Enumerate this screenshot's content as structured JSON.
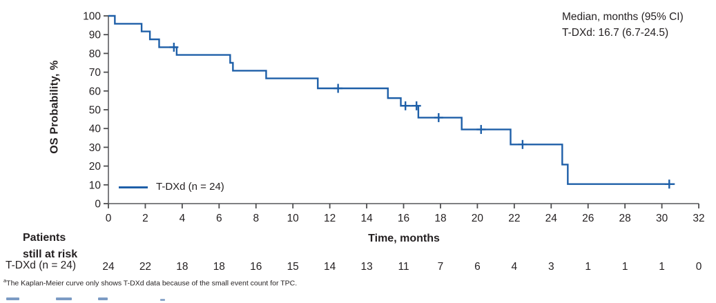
{
  "figure": {
    "annotation": {
      "line1": "Median, months (95% CI)",
      "line2": "T-DXd: 16.7 (6.7-24.5)"
    },
    "legend": {
      "label": "T-DXd (n = 24)"
    },
    "at_risk_header": {
      "line1": "Patients",
      "line2": "still at risk"
    },
    "footnote": {
      "marker": "a",
      "text": "The Kaplan-Meier curve only shows T-DXd data because of the small event count for TPC."
    }
  },
  "colors": {
    "curve": "#1e5fa8",
    "axis": "#6d6e71",
    "tick": "#4d4d4f",
    "text": "#231f20"
  },
  "chart_data": {
    "type": "line",
    "subtype": "kaplan-meier-step",
    "title": "",
    "xlabel": "Time, months",
    "ylabel": "OS Probability, %",
    "xlim": [
      0,
      32
    ],
    "ylim": [
      0,
      100
    ],
    "x_ticks": [
      0,
      2,
      4,
      6,
      8,
      10,
      12,
      14,
      16,
      18,
      20,
      22,
      24,
      26,
      28,
      30,
      32
    ],
    "y_ticks": [
      0,
      10,
      20,
      30,
      40,
      50,
      60,
      70,
      80,
      90,
      100
    ],
    "grid": false,
    "legend_position": "lower-left-inside",
    "median_months": 16.7,
    "ci_95": "6.7-24.5",
    "series": [
      {
        "name": "T-DXd (n = 24)",
        "color": "#1e5fa8",
        "steps": [
          [
            0,
            100
          ],
          [
            0.35,
            95.8
          ],
          [
            1.8,
            91.7
          ],
          [
            2.25,
            87.5
          ],
          [
            2.75,
            83.3
          ],
          [
            3.7,
            79.2
          ],
          [
            6.6,
            75.0
          ],
          [
            6.75,
            70.8
          ],
          [
            8.55,
            66.7
          ],
          [
            11.35,
            61.4
          ],
          [
            15.15,
            56.2
          ],
          [
            15.85,
            52.1
          ],
          [
            16.8,
            45.8
          ],
          [
            19.15,
            39.5
          ],
          [
            21.8,
            31.5
          ],
          [
            24.6,
            20.8
          ],
          [
            24.9,
            10.4
          ]
        ],
        "end_time": 30.7,
        "censor_marks": [
          [
            3.55,
            83.3
          ],
          [
            12.45,
            61.4
          ],
          [
            16.1,
            52.1
          ],
          [
            16.7,
            52.1
          ],
          [
            17.9,
            45.8
          ],
          [
            20.2,
            39.5
          ],
          [
            22.45,
            31.5
          ],
          [
            30.4,
            10.4
          ]
        ]
      }
    ],
    "at_risk": {
      "row_label": "T-DXd (n = 24)",
      "times": [
        0,
        2,
        4,
        6,
        8,
        10,
        12,
        14,
        16,
        18,
        20,
        22,
        24,
        26,
        28,
        30,
        32
      ],
      "values": [
        24,
        22,
        18,
        18,
        16,
        15,
        14,
        13,
        11,
        7,
        6,
        4,
        3,
        1,
        1,
        1,
        0
      ]
    }
  }
}
